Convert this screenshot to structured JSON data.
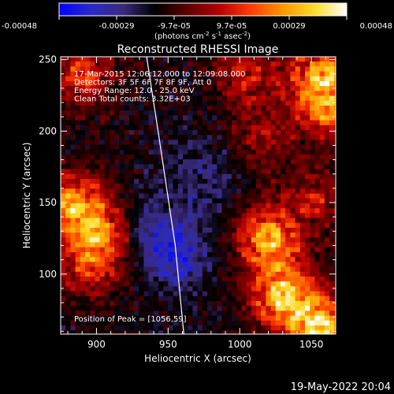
{
  "colorbar": {
    "ticks": [
      "-0.00048",
      "-0.00029",
      "-9.7e-05",
      "9.7e-05",
      "0.00029",
      "0.00048"
    ],
    "units_prefix": "(photons cm",
    "units_exp1": "-2",
    "units_mid": " s",
    "units_exp2": "-1",
    "units_mid2": " asec",
    "units_exp3": "-2",
    "units_suffix": ")",
    "colors": [
      "#0000ff",
      "#2a2ac8",
      "#3a2a7a",
      "#000000",
      "#5a0000",
      "#b40000",
      "#ff3c00",
      "#ff9600",
      "#ffdc28",
      "#ffffff"
    ]
  },
  "chart_data": {
    "type": "heatmap",
    "title": "Reconstructed RHESSI Image",
    "xlabel": "Heliocentric X (arcsec)",
    "ylabel": "Heliocentric Y (arcsec)",
    "xlim": [
      875,
      1067
    ],
    "ylim": [
      58,
      252
    ],
    "x_ticks": [
      {
        "value": 900,
        "label": "900"
      },
      {
        "value": 950,
        "label": "950"
      },
      {
        "value": 1000,
        "label": "1000"
      },
      {
        "value": 1050,
        "label": "1050"
      }
    ],
    "y_ticks": [
      {
        "value": 100,
        "label": "100"
      },
      {
        "value": 150,
        "label": "150"
      },
      {
        "value": 200,
        "label": "200"
      },
      {
        "value": 250,
        "label": "250"
      }
    ],
    "info_lines": [
      "17-Mar-2015 12:06:12.000 to 12:09:08.000",
      "Detectors: 3F 5F 6F 7F 8F 9F, Att 0",
      "Energy Range: 12.0 - 25.0 keV",
      "Clean     Total counts: 3.32E+03"
    ],
    "peak_text": "Position of Peak = [1056,59]",
    "peak_position": [
      1056,
      59
    ],
    "limb_arc": [
      [
        935,
        252
      ],
      [
        943,
        200
      ],
      [
        949,
        160
      ],
      [
        955,
        120
      ],
      [
        961,
        58
      ]
    ],
    "sources": [
      {
        "x": 890,
        "y": 240,
        "strength": 0.55
      },
      {
        "x": 882,
        "y": 150,
        "strength": 0.7
      },
      {
        "x": 900,
        "y": 130,
        "strength": 0.65
      },
      {
        "x": 895,
        "y": 105,
        "strength": 0.45
      },
      {
        "x": 1058,
        "y": 240,
        "strength": 0.75
      },
      {
        "x": 1060,
        "y": 215,
        "strength": 0.6
      },
      {
        "x": 1020,
        "y": 125,
        "strength": 0.85
      },
      {
        "x": 1030,
        "y": 85,
        "strength": 0.9
      },
      {
        "x": 1056,
        "y": 62,
        "strength": 1.0
      },
      {
        "x": 1050,
        "y": 150,
        "strength": 0.5
      },
      {
        "x": 1005,
        "y": 240,
        "strength": 0.45
      },
      {
        "x": 1015,
        "y": 195,
        "strength": 0.35
      }
    ],
    "dark_regions": [
      {
        "x": 975,
        "y": 170,
        "strength": 0.5
      },
      {
        "x": 960,
        "y": 125,
        "strength": 0.4
      }
    ],
    "negative_regions": [
      {
        "x": 950,
        "y": 120,
        "strength": 0.8
      },
      {
        "x": 955,
        "y": 105,
        "strength": 0.9
      },
      {
        "x": 935,
        "y": 135,
        "strength": 0.6
      },
      {
        "x": 1045,
        "y": 142,
        "strength": 0.7
      }
    ]
  },
  "timestamp": "19-May-2022 20:04"
}
